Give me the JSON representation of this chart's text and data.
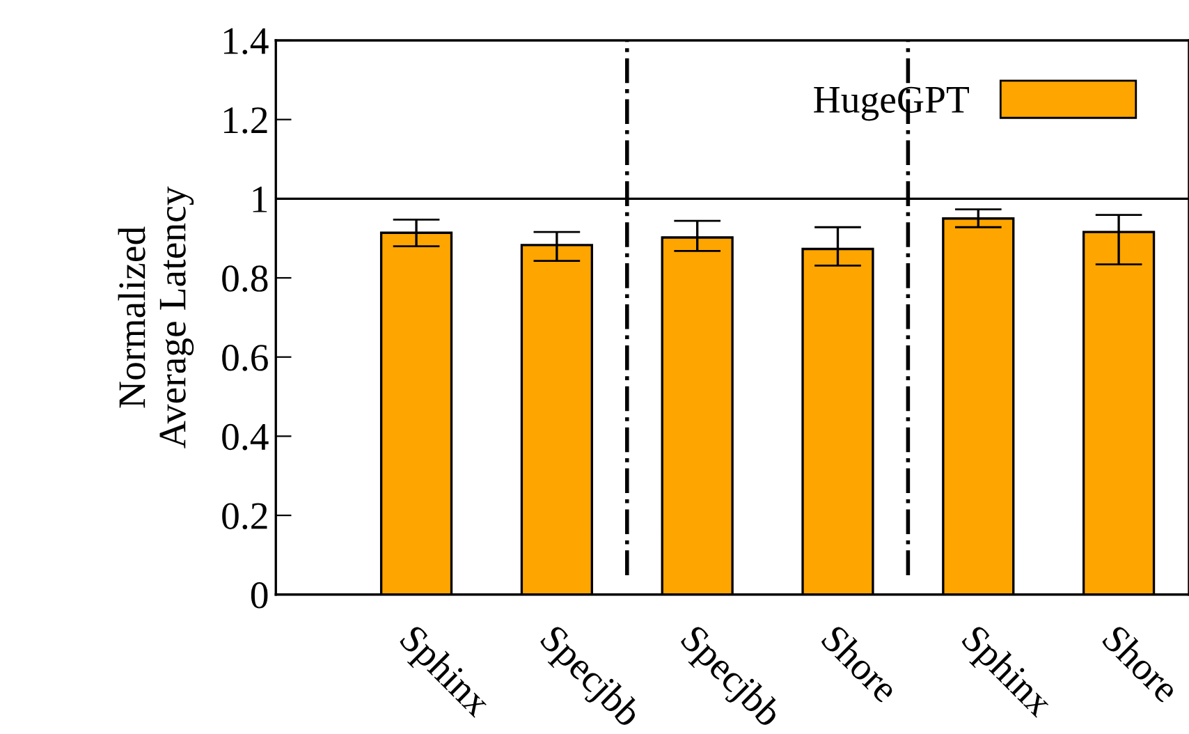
{
  "chart_data": {
    "type": "bar",
    "ylabel": "Normalized\nAverage Latency",
    "categories": [
      "Sphinx",
      "Specjbb",
      "Specjbb",
      "Shore",
      "Sphinx",
      "Shore"
    ],
    "series": [
      {
        "name": "HugeGPT",
        "color": "#ffa500",
        "values": [
          0.914,
          0.883,
          0.902,
          0.873,
          0.95,
          0.916
        ],
        "errors": [
          [
            0.88,
            0.947
          ],
          [
            0.843,
            0.916
          ],
          [
            0.868,
            0.944
          ],
          [
            0.831,
            0.928
          ],
          [
            0.928,
            0.973
          ],
          [
            0.834,
            0.959
          ]
        ]
      }
    ],
    "ylim": [
      0,
      1.4
    ],
    "yticks": [
      0,
      0.2,
      0.4,
      0.6,
      0.8,
      1,
      1.2,
      1.4
    ],
    "ref_lines": [
      {
        "axis": "y",
        "value": 1,
        "color": "#000000",
        "line_style": "solid"
      }
    ],
    "legend": "top right",
    "grid": false
  }
}
